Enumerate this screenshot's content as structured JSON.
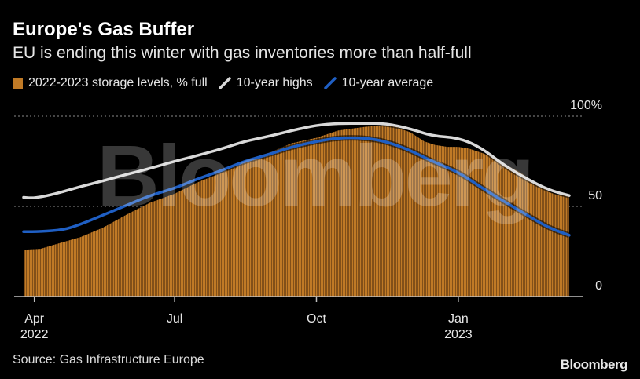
{
  "header": {
    "title": "Europe's Gas Buffer",
    "subtitle": "EU is ending this winter with gas inventories more than half-full"
  },
  "footer": {
    "source": "Source: Gas Infrastructure Europe",
    "brand": "Bloomberg"
  },
  "watermark": "Bloomberg",
  "colors": {
    "storage": "#c07a26",
    "highs": "#d9d9d9",
    "average": "#1f5fc4",
    "background": "#000000"
  },
  "chart_data": {
    "type": "area",
    "ylim": [
      0,
      100
    ],
    "grid": true,
    "legend_position": "top-left",
    "y_ticks": [
      {
        "value": 100,
        "label": "100%"
      },
      {
        "value": 50,
        "label": "50"
      },
      {
        "value": 0,
        "label": "0"
      }
    ],
    "x_range": [
      "2022-03-24",
      "2023-03-15"
    ],
    "x_ticks": [
      {
        "date": "2022-04-01",
        "label": "Apr",
        "sublabel": "2022"
      },
      {
        "date": "2022-07-01",
        "label": "Jul",
        "sublabel": ""
      },
      {
        "date": "2022-10-01",
        "label": "Oct",
        "sublabel": ""
      },
      {
        "date": "2023-01-01",
        "label": "Jan",
        "sublabel": "2023"
      }
    ],
    "series": [
      {
        "name": "2022-2023 storage levels, % full",
        "kind": "area",
        "points": [
          [
            "2022-03-25",
            26
          ],
          [
            "2022-04-05",
            26.5
          ],
          [
            "2022-04-15",
            29
          ],
          [
            "2022-05-01",
            33
          ],
          [
            "2022-05-15",
            38
          ],
          [
            "2022-06-01",
            46
          ],
          [
            "2022-06-15",
            52
          ],
          [
            "2022-07-01",
            57
          ],
          [
            "2022-07-15",
            63
          ],
          [
            "2022-08-01",
            69
          ],
          [
            "2022-08-15",
            74
          ],
          [
            "2022-09-01",
            80
          ],
          [
            "2022-09-15",
            85
          ],
          [
            "2022-10-01",
            88
          ],
          [
            "2022-10-15",
            92
          ],
          [
            "2022-11-01",
            94
          ],
          [
            "2022-11-13",
            95
          ],
          [
            "2022-11-22",
            94
          ],
          [
            "2022-12-01",
            91
          ],
          [
            "2022-12-10",
            86
          ],
          [
            "2022-12-17",
            84
          ],
          [
            "2022-12-25",
            83
          ],
          [
            "2023-01-01",
            83
          ],
          [
            "2023-01-08",
            82
          ],
          [
            "2023-01-15",
            80
          ],
          [
            "2023-01-22",
            78
          ],
          [
            "2023-02-01",
            73
          ],
          [
            "2023-02-10",
            69
          ],
          [
            "2023-02-20",
            63
          ],
          [
            "2023-03-01",
            58
          ],
          [
            "2023-03-08",
            56
          ],
          [
            "2023-03-14",
            56
          ]
        ]
      },
      {
        "name": "10-year highs",
        "kind": "line",
        "points": [
          [
            "2022-03-25",
            55
          ],
          [
            "2022-04-01",
            54.5
          ],
          [
            "2022-04-15",
            57
          ],
          [
            "2022-05-01",
            61
          ],
          [
            "2022-05-15",
            64
          ],
          [
            "2022-06-01",
            68
          ],
          [
            "2022-06-15",
            71
          ],
          [
            "2022-07-01",
            75
          ],
          [
            "2022-07-15",
            78
          ],
          [
            "2022-08-01",
            82
          ],
          [
            "2022-08-15",
            86
          ],
          [
            "2022-09-01",
            89
          ],
          [
            "2022-09-15",
            92
          ],
          [
            "2022-10-01",
            95
          ],
          [
            "2022-10-15",
            96
          ],
          [
            "2022-11-01",
            96
          ],
          [
            "2022-11-15",
            96
          ],
          [
            "2022-12-01",
            93
          ],
          [
            "2022-12-15",
            89
          ],
          [
            "2023-01-01",
            88
          ],
          [
            "2023-01-15",
            83
          ],
          [
            "2023-02-01",
            72
          ],
          [
            "2023-02-15",
            65
          ],
          [
            "2023-03-01",
            59
          ],
          [
            "2023-03-14",
            56
          ]
        ]
      },
      {
        "name": "10-year average",
        "kind": "line",
        "points": [
          [
            "2022-03-25",
            36
          ],
          [
            "2022-04-05",
            36
          ],
          [
            "2022-04-20",
            37
          ],
          [
            "2022-05-01",
            40
          ],
          [
            "2022-05-15",
            45
          ],
          [
            "2022-06-01",
            51
          ],
          [
            "2022-06-15",
            56
          ],
          [
            "2022-07-01",
            60
          ],
          [
            "2022-07-15",
            65
          ],
          [
            "2022-08-01",
            70
          ],
          [
            "2022-08-15",
            75
          ],
          [
            "2022-09-01",
            79
          ],
          [
            "2022-09-15",
            83
          ],
          [
            "2022-10-01",
            86
          ],
          [
            "2022-10-15",
            88
          ],
          [
            "2022-11-01",
            88
          ],
          [
            "2022-11-15",
            86
          ],
          [
            "2022-12-01",
            81
          ],
          [
            "2022-12-15",
            75
          ],
          [
            "2023-01-01",
            69
          ],
          [
            "2023-01-15",
            61
          ],
          [
            "2023-02-01",
            52
          ],
          [
            "2023-02-15",
            45
          ],
          [
            "2023-03-01",
            38
          ],
          [
            "2023-03-14",
            34
          ]
        ]
      }
    ]
  }
}
